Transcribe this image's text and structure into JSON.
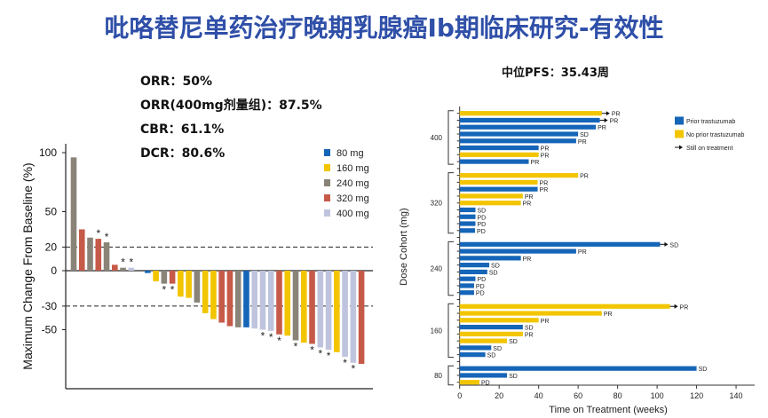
{
  "title": "吡咯替尼单药治疗晚期乳腺癌Ib期临床研究-有效性",
  "stats": [
    "ORR：50%",
    "ORR(400mg剂量组)：87.5%",
    "CBR：61.1%",
    "DCR：80.6%"
  ],
  "pfs": "中位PFS：35.43周",
  "colors": {
    "80 mg": "#1565b8",
    "160 mg": "#f2c500",
    "240 mg": "#8a8478",
    "320 mg": "#c65a48",
    "400 mg": "#bfc4de",
    "prior": "#1565b8",
    "noprior": "#f2c500",
    "title": "#2f4fa8"
  },
  "chart_data": [
    {
      "type": "bar",
      "subtype": "waterfall",
      "ylabel": "Maximum Change From Baseline (%)",
      "yticks": [
        100,
        50,
        20,
        0,
        -30,
        -50
      ],
      "ylim": [
        -100,
        100
      ],
      "reference_lines": [
        20,
        -30
      ],
      "legend": {
        "placement": "top-right",
        "entries": [
          "80 mg",
          "160 mg",
          "240 mg",
          "320 mg",
          "400 mg"
        ]
      },
      "annotation_symbol": "*",
      "bars": [
        {
          "dose": "240 mg",
          "value": 96,
          "mark": false
        },
        {
          "dose": "320 mg",
          "value": 35,
          "mark": false
        },
        {
          "dose": "240 mg",
          "value": 28,
          "mark": false
        },
        {
          "dose": "320 mg",
          "value": 27,
          "mark": true
        },
        {
          "dose": "240 mg",
          "value": 24,
          "mark": true
        },
        {
          "dose": "320 mg",
          "value": 5,
          "mark": false
        },
        {
          "dose": "240 mg",
          "value": 2.5,
          "mark": true
        },
        {
          "dose": "400 mg",
          "value": 2.5,
          "mark": true
        },
        {
          "dose": null,
          "value": 0,
          "mark": false
        },
        {
          "dose": "80 mg",
          "value": -2,
          "mark": false
        },
        {
          "dose": "160 mg",
          "value": -9,
          "mark": false
        },
        {
          "dose": "240 mg",
          "value": -11,
          "mark": true
        },
        {
          "dose": "320 mg",
          "value": -11,
          "mark": true
        },
        {
          "dose": "160 mg",
          "value": -22,
          "mark": false
        },
        {
          "dose": "160 mg",
          "value": -23,
          "mark": false
        },
        {
          "dose": "240 mg",
          "value": -27,
          "mark": false
        },
        {
          "dose": "160 mg",
          "value": -36,
          "mark": false
        },
        {
          "dose": "160 mg",
          "value": -41,
          "mark": false
        },
        {
          "dose": "320 mg",
          "value": -44,
          "mark": false
        },
        {
          "dose": "320 mg",
          "value": -47,
          "mark": false
        },
        {
          "dose": "240 mg",
          "value": -48,
          "mark": false
        },
        {
          "dose": "80 mg",
          "value": -48,
          "mark": false
        },
        {
          "dose": "400 mg",
          "value": -49,
          "mark": false
        },
        {
          "dose": "400 mg",
          "value": -50,
          "mark": true
        },
        {
          "dose": "400 mg",
          "value": -51,
          "mark": true
        },
        {
          "dose": "320 mg",
          "value": -54,
          "mark": true
        },
        {
          "dose": "160 mg",
          "value": -55,
          "mark": false
        },
        {
          "dose": "240 mg",
          "value": -59,
          "mark": true
        },
        {
          "dose": "160 mg",
          "value": -61,
          "mark": false
        },
        {
          "dose": "320 mg",
          "value": -62,
          "mark": true
        },
        {
          "dose": "400 mg",
          "value": -65,
          "mark": true
        },
        {
          "dose": "400 mg",
          "value": -67,
          "mark": true
        },
        {
          "dose": "160 mg",
          "value": -69,
          "mark": false
        },
        {
          "dose": "400 mg",
          "value": -73,
          "mark": true
        },
        {
          "dose": "400 mg",
          "value": -78,
          "mark": true
        },
        {
          "dose": "320 mg",
          "value": -79,
          "mark": false
        }
      ]
    },
    {
      "type": "bar",
      "subtype": "swimmer",
      "orientation": "horizontal",
      "xlabel": "Time on Treatment (weeks)",
      "ylabel": "Dose Cohort (mg)",
      "xticks": [
        0,
        20,
        40,
        60,
        80,
        100,
        120,
        140
      ],
      "xlim": [
        0,
        140
      ],
      "legend": {
        "placement": "top-right",
        "entries": [
          {
            "label": "Prior trastuzumab",
            "key": "prior"
          },
          {
            "label": "No prior trastuzumab",
            "key": "noprior"
          },
          {
            "label": "Still on treatment",
            "key": "arrow"
          }
        ]
      },
      "groups": [
        {
          "label": "400",
          "rows": [
            {
              "weeks": 72,
              "prior": false,
              "ongoing": true,
              "response": "PR"
            },
            {
              "weeks": 71,
              "prior": true,
              "ongoing": true,
              "response": "PR"
            },
            {
              "weeks": 69,
              "prior": true,
              "ongoing": false,
              "response": "PR"
            },
            {
              "weeks": 60,
              "prior": true,
              "ongoing": false,
              "response": "SD"
            },
            {
              "weeks": 59,
              "prior": true,
              "ongoing": false,
              "response": "PR"
            },
            {
              "weeks": 40,
              "prior": true,
              "ongoing": false,
              "response": "PR"
            },
            {
              "weeks": 40,
              "prior": false,
              "ongoing": false,
              "response": "PR"
            },
            {
              "weeks": 35,
              "prior": true,
              "ongoing": false,
              "response": "PR"
            }
          ]
        },
        {
          "label": "320",
          "rows": [
            {
              "weeks": 60,
              "prior": false,
              "ongoing": false,
              "response": "PR"
            },
            {
              "weeks": 39.5,
              "prior": false,
              "ongoing": false,
              "response": "PR"
            },
            {
              "weeks": 39.5,
              "prior": true,
              "ongoing": false,
              "response": "PR"
            },
            {
              "weeks": 32,
              "prior": false,
              "ongoing": false,
              "response": "PR"
            },
            {
              "weeks": 31,
              "prior": false,
              "ongoing": false,
              "response": "PR"
            },
            {
              "weeks": 8,
              "prior": true,
              "ongoing": false,
              "response": "SD"
            },
            {
              "weeks": 8,
              "prior": true,
              "ongoing": false,
              "response": "PD"
            },
            {
              "weeks": 8,
              "prior": true,
              "ongoing": false,
              "response": "PD"
            },
            {
              "weeks": 7.8,
              "prior": true,
              "ongoing": false,
              "response": "PD"
            }
          ]
        },
        {
          "label": "240",
          "rows": [
            {
              "weeks": 101.5,
              "prior": true,
              "ongoing": true,
              "response": "SD"
            },
            {
              "weeks": 59,
              "prior": true,
              "ongoing": false,
              "response": "PR"
            },
            {
              "weeks": 31,
              "prior": true,
              "ongoing": false,
              "response": "PR"
            },
            {
              "weeks": 15,
              "prior": true,
              "ongoing": false,
              "response": "SD"
            },
            {
              "weeks": 14,
              "prior": true,
              "ongoing": false,
              "response": "SD"
            },
            {
              "weeks": 8,
              "prior": true,
              "ongoing": false,
              "response": "PD"
            },
            {
              "weeks": 7.3,
              "prior": true,
              "ongoing": false,
              "response": "PD"
            },
            {
              "weeks": 7.3,
              "prior": true,
              "ongoing": false,
              "response": "PD"
            }
          ]
        },
        {
          "label": "160",
          "rows": [
            {
              "weeks": 106.5,
              "prior": false,
              "ongoing": true,
              "response": "PR"
            },
            {
              "weeks": 72,
              "prior": false,
              "ongoing": false,
              "response": "PR"
            },
            {
              "weeks": 40,
              "prior": false,
              "ongoing": false,
              "response": "PR"
            },
            {
              "weeks": 32,
              "prior": true,
              "ongoing": false,
              "response": "SD"
            },
            {
              "weeks": 32,
              "prior": false,
              "ongoing": false,
              "response": "PR"
            },
            {
              "weeks": 24,
              "prior": false,
              "ongoing": false,
              "response": "SD"
            },
            {
              "weeks": 16,
              "prior": true,
              "ongoing": false,
              "response": "SD"
            },
            {
              "weeks": 13,
              "prior": true,
              "ongoing": false,
              "response": "SD"
            }
          ]
        },
        {
          "label": "80",
          "rows": [
            {
              "weeks": 120,
              "prior": true,
              "ongoing": false,
              "response": "SD"
            },
            {
              "weeks": 24,
              "prior": true,
              "ongoing": false,
              "response": "SD"
            },
            {
              "weeks": 10,
              "prior": false,
              "ongoing": false,
              "response": "PD"
            }
          ]
        }
      ]
    }
  ]
}
